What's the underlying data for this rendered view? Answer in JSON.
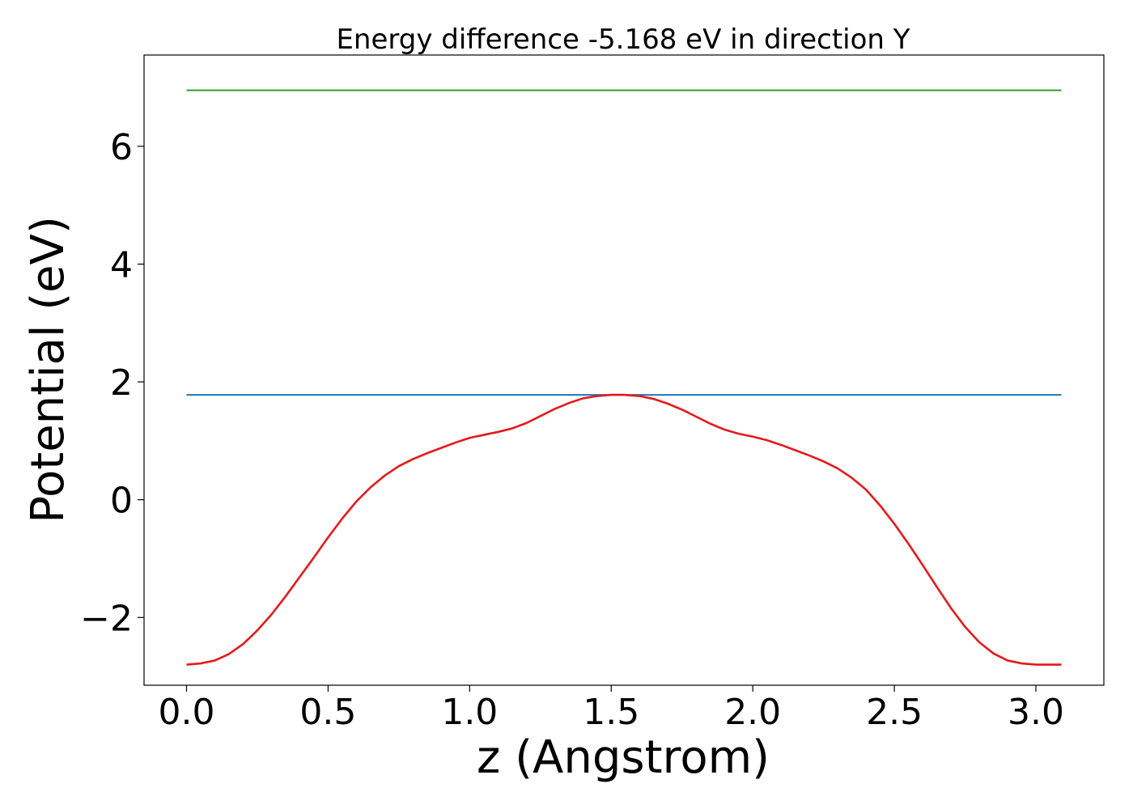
{
  "chart_data": {
    "type": "line",
    "title": "Energy difference -5.168 eV in direction Y",
    "xlabel": "z (Angstrom)",
    "ylabel": "Potential (eV)",
    "xlim": [
      -0.15,
      3.24
    ],
    "ylim": [
      -3.15,
      7.55
    ],
    "xticks": [
      0.0,
      0.5,
      1.0,
      1.5,
      2.0,
      2.5,
      3.0
    ],
    "xtick_labels": [
      "0.0",
      "0.5",
      "1.0",
      "1.5",
      "2.0",
      "2.5",
      "3.0"
    ],
    "yticks": [
      -2,
      0,
      2,
      4,
      6
    ],
    "ytick_labels": [
      "−2",
      "0",
      "2",
      "4",
      "6"
    ],
    "grid": false,
    "series": [
      {
        "color": "#2ca02c",
        "x": [
          0.0,
          3.09
        ],
        "y": [
          6.95,
          6.95
        ]
      },
      {
        "color": "#1f77b4",
        "x": [
          0.0,
          3.09
        ],
        "y": [
          1.78,
          1.78
        ]
      },
      {
        "color": "#e31a1c",
        "x": [
          0.0,
          0.05,
          0.1,
          0.15,
          0.2,
          0.25,
          0.3,
          0.35,
          0.4,
          0.45,
          0.5,
          0.55,
          0.6,
          0.65,
          0.7,
          0.75,
          0.8,
          0.85,
          0.9,
          0.95,
          1.0,
          1.05,
          1.1,
          1.15,
          1.2,
          1.25,
          1.3,
          1.35,
          1.4,
          1.45,
          1.5,
          1.545,
          1.6,
          1.65,
          1.7,
          1.75,
          1.8,
          1.85,
          1.9,
          1.95,
          2.0,
          2.05,
          2.1,
          2.15,
          2.2,
          2.25,
          2.3,
          2.35,
          2.4,
          2.45,
          2.5,
          2.55,
          2.6,
          2.65,
          2.7,
          2.75,
          2.8,
          2.85,
          2.9,
          2.95,
          3.0,
          3.05,
          3.09
        ],
        "y": [
          -2.8,
          -2.78,
          -2.73,
          -2.62,
          -2.45,
          -2.22,
          -1.95,
          -1.64,
          -1.31,
          -0.98,
          -0.64,
          -0.32,
          -0.03,
          0.21,
          0.41,
          0.57,
          0.69,
          0.79,
          0.88,
          0.97,
          1.05,
          1.1,
          1.15,
          1.21,
          1.3,
          1.42,
          1.54,
          1.64,
          1.72,
          1.76,
          1.78,
          1.78,
          1.76,
          1.71,
          1.63,
          1.53,
          1.41,
          1.29,
          1.19,
          1.12,
          1.07,
          1.01,
          0.93,
          0.84,
          0.75,
          0.65,
          0.53,
          0.37,
          0.17,
          -0.1,
          -0.41,
          -0.75,
          -1.11,
          -1.48,
          -1.84,
          -2.16,
          -2.42,
          -2.61,
          -2.73,
          -2.78,
          -2.8,
          -2.8,
          -2.8
        ]
      }
    ]
  }
}
